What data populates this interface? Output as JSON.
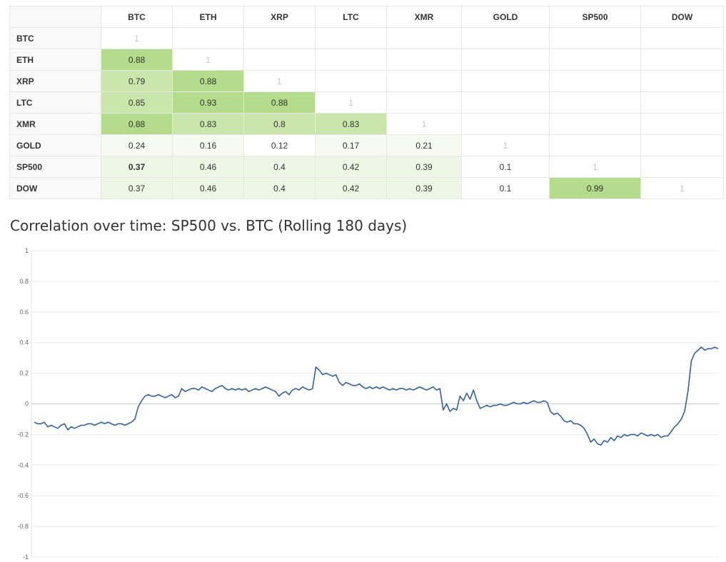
{
  "matrix": {
    "columns": [
      "BTC",
      "ETH",
      "XRP",
      "LTC",
      "XMR",
      "GOLD",
      "SP500",
      "DOW"
    ],
    "rows": [
      {
        "label": "BTC",
        "values": [
          "1"
        ]
      },
      {
        "label": "ETH",
        "values": [
          "0.88",
          "1"
        ]
      },
      {
        "label": "XRP",
        "values": [
          "0.79",
          "0.88",
          "1"
        ]
      },
      {
        "label": "LTC",
        "values": [
          "0.85",
          "0.93",
          "0.88",
          "1"
        ]
      },
      {
        "label": "XMR",
        "values": [
          "0.88",
          "0.83",
          "0.8",
          "0.83",
          "1"
        ]
      },
      {
        "label": "GOLD",
        "values": [
          "0.24",
          "0.16",
          "0.12",
          "0.17",
          "0.21",
          "1"
        ]
      },
      {
        "label": "SP500",
        "values": [
          "0.37",
          "0.46",
          "0.4",
          "0.42",
          "0.39",
          "0.1",
          "1"
        ]
      },
      {
        "label": "DOW",
        "values": [
          "0.37",
          "0.46",
          "0.4",
          "0.42",
          "0.39",
          "0.1",
          "0.99",
          "1"
        ]
      }
    ],
    "colors": {
      "diagonal_text": "#c4c4c4",
      "high": "#b5db8c",
      "mid": "#cae6ac",
      "low": "#eef6e5",
      "faint": "#f6faf1"
    }
  },
  "chart_data": {
    "type": "line",
    "title": "Correlation over time: SP500 vs. BTC (Rolling 180 days)",
    "xlabel": "",
    "ylabel": "",
    "ylim": [
      -1,
      1
    ],
    "yticks": [
      "1",
      "0.8",
      "0.6",
      "0.4",
      "0.2",
      "0",
      "-0.2",
      "-0.4",
      "-0.6",
      "-0.8",
      "-1"
    ],
    "grid": true,
    "line_color": "#34609a",
    "series": [
      {
        "values": [
          -0.12,
          -0.13,
          -0.13,
          -0.12,
          -0.15,
          -0.14,
          -0.15,
          -0.16,
          -0.14,
          -0.13,
          -0.17,
          -0.15,
          -0.16,
          -0.15,
          -0.14,
          -0.14,
          -0.13,
          -0.13,
          -0.14,
          -0.13,
          -0.12,
          -0.13,
          -0.12,
          -0.13,
          -0.14,
          -0.13,
          -0.13,
          -0.14,
          -0.13,
          -0.12,
          -0.1,
          -0.02,
          0.02,
          0.05,
          0.06,
          0.05,
          0.05,
          0.06,
          0.05,
          0.04,
          0.05,
          0.06,
          0.04,
          0.05,
          0.1,
          0.08,
          0.09,
          0.1,
          0.1,
          0.09,
          0.11,
          0.1,
          0.09,
          0.08,
          0.1,
          0.11,
          0.12,
          0.1,
          0.09,
          0.1,
          0.09,
          0.1,
          0.09,
          0.1,
          0.08,
          0.09,
          0.1,
          0.09,
          0.1,
          0.11,
          0.1,
          0.09,
          0.08,
          0.05,
          0.07,
          0.08,
          0.06,
          0.09,
          0.1,
          0.09,
          0.11,
          0.1,
          0.09,
          0.1,
          0.24,
          0.22,
          0.19,
          0.2,
          0.19,
          0.18,
          0.19,
          0.14,
          0.12,
          0.14,
          0.13,
          0.12,
          0.12,
          0.13,
          0.11,
          0.1,
          0.11,
          0.1,
          0.11,
          0.1,
          0.11,
          0.1,
          0.09,
          0.1,
          0.09,
          0.1,
          0.1,
          0.09,
          0.1,
          0.09,
          0.1,
          0.11,
          0.1,
          0.09,
          0.1,
          0.11,
          0.09,
          0.1,
          -0.04,
          0.0,
          -0.05,
          -0.03,
          -0.04,
          0.05,
          0.02,
          0.07,
          0.03,
          0.09,
          0.02,
          -0.03,
          -0.02,
          -0.01,
          -0.02,
          -0.01,
          -0.01,
          0.0,
          -0.01,
          -0.01,
          0.0,
          0.01,
          0.0,
          0.0,
          0.01,
          0.0,
          0.01,
          0.02,
          0.01,
          0.01,
          0.02,
          0.01,
          -0.05,
          -0.07,
          -0.06,
          -0.08,
          -0.11,
          -0.12,
          -0.11,
          -0.13,
          -0.13,
          -0.14,
          -0.16,
          -0.2,
          -0.25,
          -0.23,
          -0.26,
          -0.27,
          -0.24,
          -0.25,
          -0.22,
          -0.24,
          -0.21,
          -0.22,
          -0.2,
          -0.21,
          -0.2,
          -0.2,
          -0.21,
          -0.19,
          -0.2,
          -0.21,
          -0.2,
          -0.21,
          -0.2,
          -0.22,
          -0.21,
          -0.21,
          -0.18,
          -0.15,
          -0.13,
          -0.1,
          -0.05,
          0.08,
          0.28,
          0.33,
          0.35,
          0.37,
          0.35,
          0.36,
          0.36,
          0.37,
          0.36
        ]
      }
    ]
  }
}
